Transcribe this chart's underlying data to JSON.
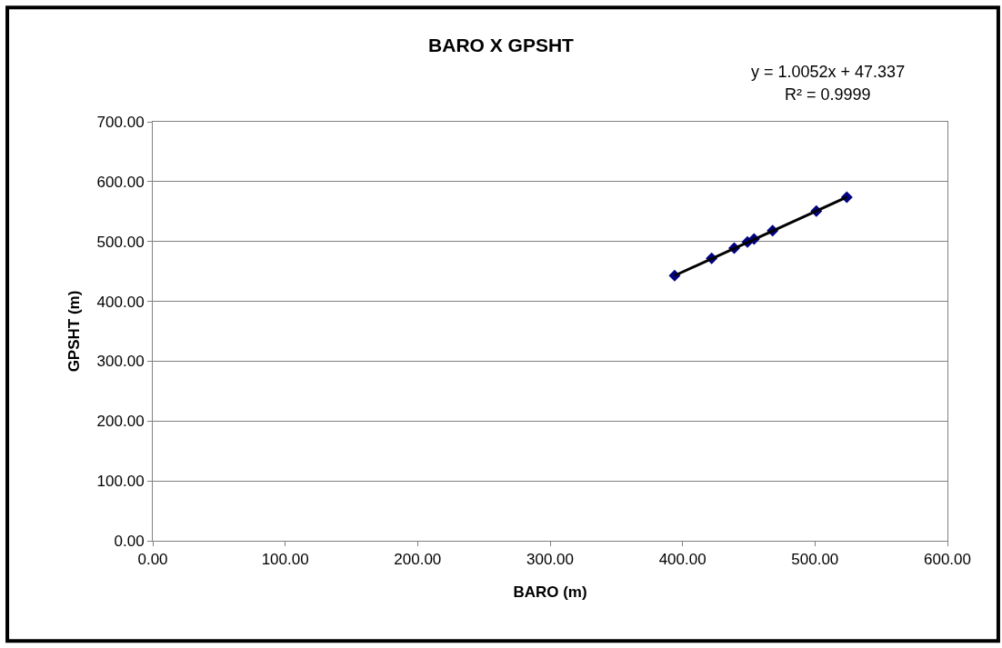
{
  "chart_data": {
    "type": "scatter",
    "title": "BARO X GPSHT",
    "xlabel": "BARO (m)",
    "ylabel": "GPSHT (m)",
    "annotations": [
      "y = 1.0052x + 47.337",
      "R² = 0.9999"
    ],
    "series": [
      {
        "type": "scatter",
        "color": "#000080",
        "marker": "diamond",
        "x": [
          394,
          422,
          439,
          449,
          454,
          468,
          501,
          524
        ],
        "values": [
          443,
          472,
          489,
          499,
          504,
          518,
          551,
          574
        ]
      },
      {
        "type": "line",
        "color": "#000000",
        "marker": "none",
        "x": [
          394,
          524
        ],
        "values": [
          443,
          574
        ]
      }
    ],
    "xlim": [
      0,
      600
    ],
    "xticks": [
      {
        "value": 0,
        "label": "0.00"
      },
      {
        "value": 100,
        "label": "100.00"
      },
      {
        "value": 200,
        "label": "200.00"
      },
      {
        "value": 300,
        "label": "300.00"
      },
      {
        "value": 400,
        "label": "400.00"
      },
      {
        "value": 500,
        "label": "500.00"
      },
      {
        "value": 600,
        "label": "600.00"
      }
    ],
    "ylim": [
      0,
      700
    ],
    "yticks": [
      {
        "value": 0,
        "label": "0.00"
      },
      {
        "value": 100,
        "label": "100.00"
      },
      {
        "value": 200,
        "label": "200.00"
      },
      {
        "value": 300,
        "label": "300.00"
      },
      {
        "value": 400,
        "label": "400.00"
      },
      {
        "value": 500,
        "label": "500.00"
      },
      {
        "value": 600,
        "label": "600.00"
      },
      {
        "value": 700,
        "label": "700.00"
      }
    ],
    "grid": "y"
  }
}
